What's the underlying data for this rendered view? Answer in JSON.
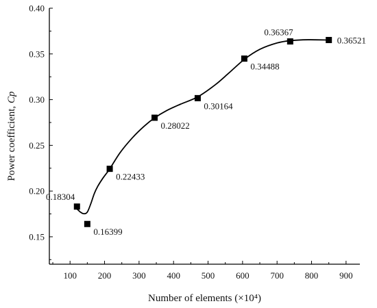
{
  "chart_data": {
    "type": "scatter",
    "xlabel": "Number of elements (×10⁴)",
    "ylabel_main": "Power coefficient, ",
    "ylabel_var": "Cp",
    "xlim": [
      40,
      940
    ],
    "ylim": [
      0.12,
      0.4
    ],
    "x_ticks": [
      100,
      200,
      300,
      400,
      500,
      600,
      700,
      800,
      900
    ],
    "y_ticks": [
      0.15,
      0.2,
      0.25,
      0.3,
      0.35,
      0.4
    ],
    "y_tick_labels": [
      "0.15",
      "0.20",
      "0.25",
      "0.30",
      "0.35",
      "0.40"
    ],
    "grid": false,
    "series": [
      {
        "points": [
          {
            "x": 120,
            "y": 0.18304,
            "label": "0.18304",
            "label_side": "above-left"
          },
          {
            "x": 150,
            "y": 0.16399,
            "label": "0.16399",
            "label_side": "below-right"
          },
          {
            "x": 215,
            "y": 0.22433,
            "label": "0.22433",
            "label_side": "below-right"
          },
          {
            "x": 345,
            "y": 0.28022,
            "label": "0.28022",
            "label_side": "below-right"
          },
          {
            "x": 470,
            "y": 0.30164,
            "label": "0.30164",
            "label_side": "below-right"
          },
          {
            "x": 605,
            "y": 0.34488,
            "label": "0.34488",
            "label_side": "below-right"
          },
          {
            "x": 738,
            "y": 0.36367,
            "label": "0.36367",
            "label_side": "above"
          },
          {
            "x": 850,
            "y": 0.36521,
            "label": "0.36521",
            "label_side": "right"
          }
        ]
      }
    ],
    "fit_curve": {
      "x": [
        120,
        130,
        140,
        150,
        160,
        170,
        180,
        195,
        215,
        245,
        280,
        315,
        345,
        380,
        420,
        470,
        520,
        560,
        605,
        650,
        700,
        738,
        790,
        850
      ],
      "y": [
        0.1805,
        0.177,
        0.1752,
        0.177,
        0.186,
        0.197,
        0.205,
        0.214,
        0.2243,
        0.242,
        0.258,
        0.271,
        0.28,
        0.288,
        0.295,
        0.303,
        0.316,
        0.329,
        0.344,
        0.355,
        0.362,
        0.3645,
        0.3655,
        0.3652
      ]
    }
  }
}
